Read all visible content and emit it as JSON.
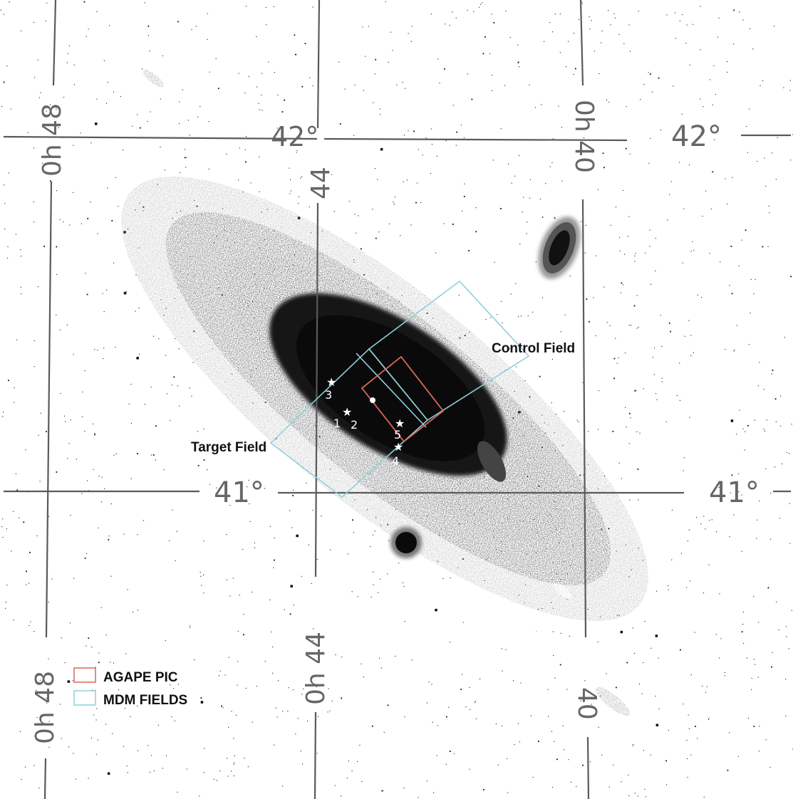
{
  "image": {
    "subject": "M31 galaxy inverted-grayscale sky chart",
    "colors": {
      "background": "#ffffff",
      "grid": "#5a5a5a",
      "stars": "#111111",
      "halo_light": "#b5b5b5",
      "disk_mid": "#6f6f6f",
      "disk_dark": "#3e3e3e",
      "bulge": "#111111",
      "agape": "#d9695a",
      "mdm": "#8fd0dd",
      "text": "#111111",
      "axis_label": "#666666"
    }
  },
  "grid_labels": {
    "dec_top_left": "42°",
    "dec_top_right": "42°",
    "dec_bottom_left": "41°",
    "dec_bottom_right": "41°",
    "ra_top_left": "0h 48",
    "ra_top_center": "44",
    "ra_top_right": "0h 40",
    "ra_bottom_left": "0h 48",
    "ra_bottom_center": "0h 44",
    "ra_bottom_right": "40"
  },
  "field_labels": {
    "control": "Control Field",
    "target": "Target Field"
  },
  "markers": [
    "1",
    "2",
    "3",
    "4",
    "5"
  ],
  "legend": [
    {
      "label": "AGAPE PIC",
      "color": "#d9695a"
    },
    {
      "label": "MDM FIELDS",
      "color": "#8fd0dd"
    }
  ]
}
